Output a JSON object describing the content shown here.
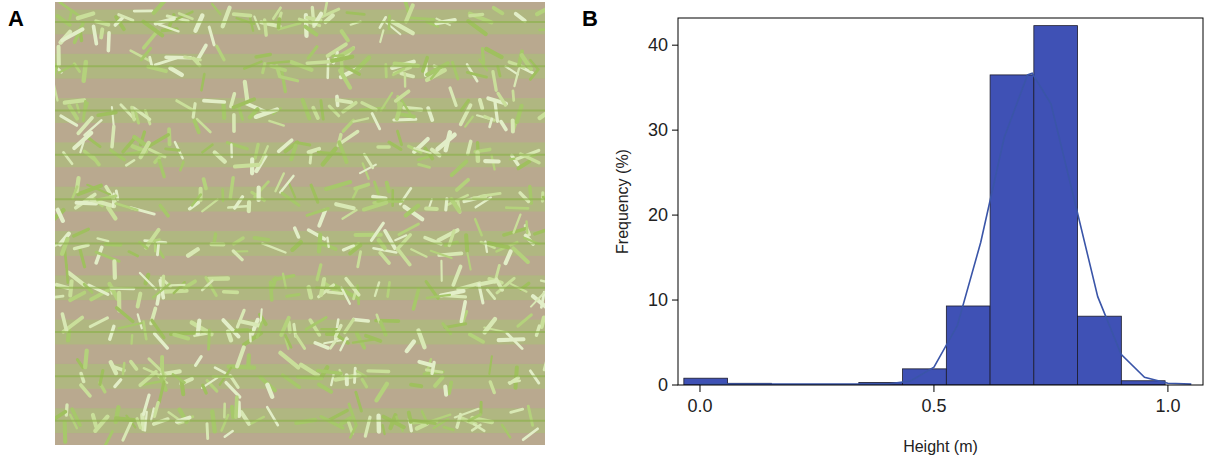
{
  "panel_labels": [
    "A",
    "B"
  ],
  "chart_data": {
    "type": "histogram",
    "xlabel": "Height (m)",
    "ylabel": "Frequency (%)",
    "bins": [
      -0.0345,
      0.059,
      0.1525,
      0.246,
      0.3395,
      0.433,
      0.5265,
      0.62,
      0.7135,
      0.807,
      0.9005,
      0.994
    ],
    "values": [
      0.8,
      0.2,
      0.05,
      0.05,
      0.3,
      1.9,
      9.3,
      36.5,
      42.3,
      8.1,
      0.5
    ],
    "color": "#3f51b5",
    "xlim": [
      -0.047,
      1.075
    ],
    "ylim": [
      0,
      43.2
    ],
    "xticks": [
      {
        "value": 0,
        "label": "0.0"
      },
      {
        "value": 0.5,
        "label": "0.5"
      },
      {
        "value": 1,
        "label": "1.0"
      }
    ],
    "yticks": [
      0,
      10,
      20,
      30,
      40
    ],
    "grid": false,
    "series": [
      {
        "type": "line",
        "color": "#3a55a8",
        "x": [
          0,
          0.1,
          0.2,
          0.3,
          0.35,
          0.4,
          0.45,
          0.5,
          0.55,
          0.6,
          0.65,
          0.7,
          0.71,
          0.75,
          0.8,
          0.85,
          0.9,
          0.95,
          1.0,
          1.05
        ],
        "values": [
          0.1,
          0.1,
          0.1,
          0.1,
          0.1,
          0.1,
          0.47,
          2.1,
          7.0,
          16.8,
          29.1,
          36.5,
          36.7,
          33.1,
          21.8,
          10.4,
          3.6,
          0.9,
          0.2,
          0.1
        ]
      }
    ]
  }
}
